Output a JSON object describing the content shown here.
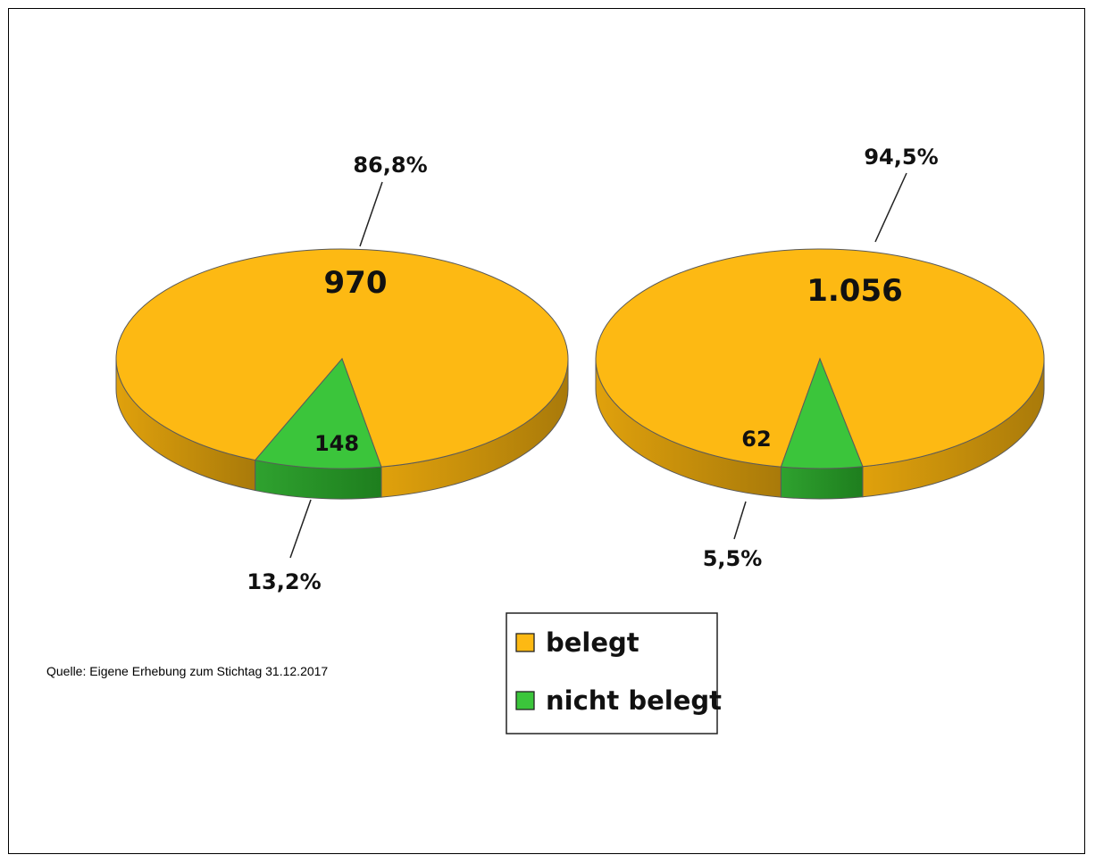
{
  "colors": {
    "belegt": "#FDB913",
    "belegt_dark": "#A97A0A",
    "nicht_belegt": "#3BC53B",
    "nicht_belegt_dark": "#1E7E1E",
    "outline": "#5a5a5a"
  },
  "chart_data": [
    {
      "type": "pie",
      "style": "3d",
      "slices": [
        {
          "label": "belegt",
          "value": 970,
          "percent": "86,8%",
          "value_label": "970"
        },
        {
          "label": "nicht belegt",
          "value": 148,
          "percent": "13,2%",
          "value_label": "148"
        }
      ]
    },
    {
      "type": "pie",
      "style": "3d",
      "slices": [
        {
          "label": "belegt",
          "value": 1056,
          "percent": "94,5%",
          "value_label": "1.056"
        },
        {
          "label": "nicht belegt",
          "value": 62,
          "percent": "5,5%",
          "value_label": "62"
        }
      ]
    }
  ],
  "legend": {
    "placement": "bottom-center",
    "items": [
      {
        "label": "belegt",
        "color": "#FDB913"
      },
      {
        "label": "nicht belegt",
        "color": "#3BC53B"
      }
    ]
  },
  "source": "Quelle: Eigene Erhebung  zum Stichtag 31.12.2017"
}
